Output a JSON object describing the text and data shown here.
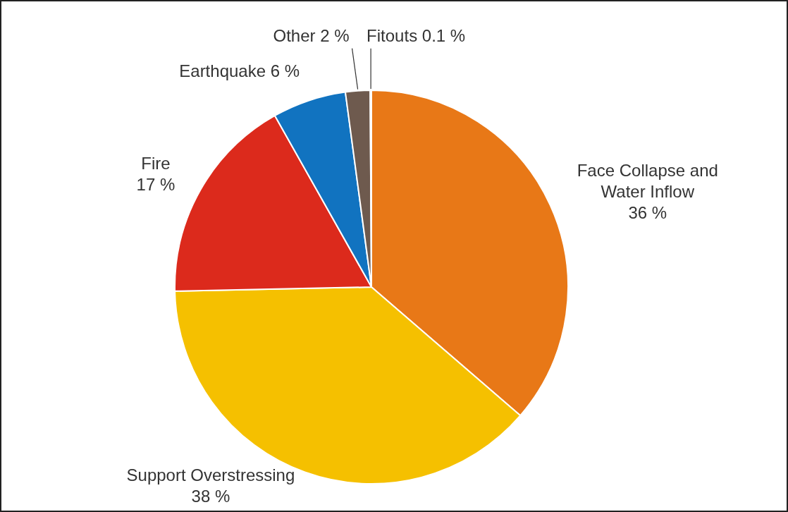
{
  "chart_data": {
    "type": "pie",
    "categories": [
      "Face Collapse and Water Inflow",
      "Support Overstressing",
      "Fire",
      "Earthquake",
      "Other",
      "Fitouts"
    ],
    "values": [
      36,
      38,
      17,
      6,
      2,
      0.1
    ],
    "value_labels": [
      "36 %",
      "38 %",
      "17 %",
      "6 %",
      "2 %",
      "0.1 %"
    ],
    "colors": [
      "#e87817",
      "#f5c000",
      "#dc2a1c",
      "#1173c0",
      "#6e5a4e",
      "#7bb23c"
    ]
  }
}
